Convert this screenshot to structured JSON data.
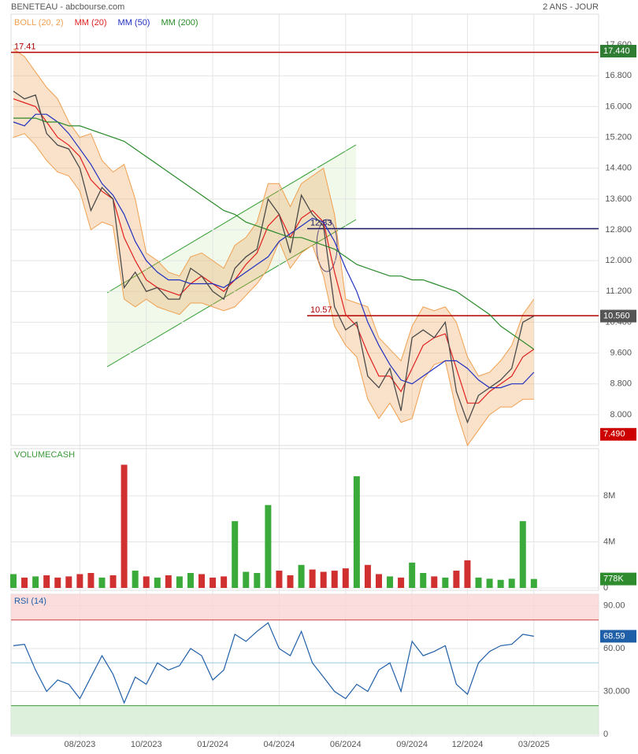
{
  "header": {
    "source": "BENETEAU - abcbourse.com",
    "period": "2 ANS - JOUR"
  },
  "chart_data": [
    {
      "type": "line",
      "categories": [
        null,
        null,
        null,
        null,
        null,
        null,
        "08/2023",
        null,
        null,
        null,
        null,
        null,
        "10/2023",
        null,
        null,
        null,
        null,
        null,
        "01/2024",
        null,
        null,
        null,
        null,
        null,
        "04/2024",
        null,
        null,
        null,
        null,
        null,
        "06/2024",
        null,
        null,
        null,
        null,
        null,
        "09/2024",
        null,
        null,
        null,
        null,
        "12/2024",
        null,
        null,
        null,
        null,
        null,
        "03/2025"
      ],
      "price": {
        "color": "#4a4a4a",
        "values": [
          16.4,
          16.2,
          16.3,
          15.3,
          15.0,
          14.9,
          14.4,
          13.3,
          13.9,
          13.6,
          11.3,
          11.7,
          11.2,
          11.3,
          11.0,
          11.0,
          11.8,
          11.6,
          11.2,
          11.0,
          11.8,
          12.1,
          12.3,
          13.6,
          13.2,
          12.2,
          13.7,
          13.2,
          12.9,
          10.8,
          10.2,
          10.4,
          9.0,
          8.7,
          9.2,
          8.1,
          10.0,
          10.2,
          10.0,
          10.4,
          8.6,
          7.8,
          8.5,
          8.7,
          8.9,
          9.2,
          10.4,
          10.56
        ]
      },
      "bands": {
        "name": "BOLL (20, 2)",
        "color": "#f0a050",
        "upper": [
          17.5,
          17.3,
          16.9,
          16.5,
          16.2,
          15.6,
          15.2,
          15.3,
          14.6,
          14.3,
          14.5,
          13.6,
          12.2,
          12.0,
          11.7,
          11.6,
          12.1,
          12.2,
          12.0,
          11.8,
          12.4,
          12.6,
          13.0,
          14.0,
          14.0,
          13.4,
          14.0,
          14.2,
          14.4,
          13.2,
          11.0,
          10.9,
          10.8,
          10.0,
          9.7,
          9.4,
          10.3,
          10.8,
          10.7,
          10.8,
          10.4,
          9.5,
          9.0,
          9.1,
          9.4,
          9.8,
          10.6,
          11.0
        ],
        "lower": [
          15.2,
          15.3,
          15.0,
          14.6,
          14.3,
          14.2,
          13.8,
          12.8,
          13.0,
          12.9,
          11.0,
          10.8,
          11.0,
          10.8,
          10.7,
          10.6,
          10.9,
          10.9,
          10.8,
          10.7,
          10.8,
          11.1,
          11.4,
          11.8,
          12.5,
          11.8,
          12.2,
          12.4,
          11.6,
          10.3,
          9.8,
          9.5,
          8.4,
          7.9,
          8.3,
          7.8,
          7.9,
          8.9,
          9.3,
          9.4,
          8.1,
          7.2,
          7.6,
          8.0,
          8.2,
          8.2,
          8.4,
          8.4
        ]
      },
      "series": [
        {
          "name": "MM (20)",
          "color": "#e02020",
          "values": [
            16.2,
            16.1,
            16.0,
            15.6,
            15.2,
            15.0,
            14.7,
            14.1,
            13.8,
            13.6,
            12.6,
            12.0,
            11.5,
            11.3,
            11.2,
            11.1,
            11.4,
            11.6,
            11.4,
            11.2,
            11.5,
            11.9,
            12.2,
            12.9,
            13.2,
            12.6,
            13.1,
            13.3,
            13.0,
            11.7,
            10.6,
            10.3,
            9.6,
            9.0,
            9.0,
            8.6,
            9.2,
            9.8,
            10.0,
            10.1,
            9.2,
            8.3,
            8.3,
            8.6,
            8.8,
            9.0,
            9.5,
            9.7
          ]
        },
        {
          "name": "MM (50)",
          "color": "#2030c0",
          "values": [
            15.6,
            15.5,
            15.8,
            15.8,
            15.6,
            15.3,
            14.9,
            14.5,
            14.0,
            13.7,
            13.2,
            12.5,
            12.0,
            11.7,
            11.5,
            11.5,
            11.4,
            11.4,
            11.4,
            11.3,
            11.5,
            11.7,
            11.9,
            12.1,
            12.5,
            12.7,
            12.9,
            13.1,
            13.0,
            12.5,
            11.8,
            11.2,
            10.4,
            9.8,
            9.3,
            8.9,
            8.8,
            9.0,
            9.2,
            9.4,
            9.4,
            9.2,
            8.9,
            8.7,
            8.7,
            8.8,
            8.8,
            9.1
          ]
        },
        {
          "name": "MM (200)",
          "color": "#2a8a2a",
          "values": [
            15.7,
            15.7,
            15.7,
            15.6,
            15.6,
            15.5,
            15.5,
            15.4,
            15.3,
            15.2,
            15.1,
            14.9,
            14.7,
            14.5,
            14.3,
            14.1,
            13.9,
            13.7,
            13.5,
            13.3,
            13.2,
            13.0,
            12.9,
            12.8,
            12.7,
            12.6,
            12.6,
            12.5,
            12.4,
            12.3,
            12.1,
            11.9,
            11.8,
            11.7,
            11.6,
            11.6,
            11.5,
            11.5,
            11.4,
            11.3,
            11.2,
            11.0,
            10.8,
            10.6,
            10.3,
            10.1,
            9.9,
            9.7
          ]
        }
      ],
      "levels": [
        {
          "value": 17.41,
          "color": "#b00000"
        },
        {
          "value": 12.83,
          "color": "#1a1a60"
        },
        {
          "value": 10.57,
          "color": "#b00000"
        }
      ],
      "tags": [
        {
          "value": 17.44,
          "label": "17.440",
          "color": "#2e7d32"
        },
        {
          "value": 10.56,
          "label": "10.560",
          "color": "#555555"
        },
        {
          "value": 7.49,
          "label": "7.490",
          "color": "#cc0000"
        }
      ],
      "ylim": [
        7.2,
        18.4
      ],
      "yticks": [
        {
          "value": 8,
          "label": "8.000"
        },
        {
          "value": 8.8,
          "label": "8.800"
        },
        {
          "value": 9.6,
          "label": "9.600"
        },
        {
          "value": 10.4,
          "label": "10.400"
        },
        {
          "value": 11.2,
          "label": "11.200"
        },
        {
          "value": 12,
          "label": "12.000"
        },
        {
          "value": 12.8,
          "label": "12.800"
        },
        {
          "value": 13.6,
          "label": "13.600"
        },
        {
          "value": 14.4,
          "label": "14.400"
        },
        {
          "value": 15.2,
          "label": "15.200"
        },
        {
          "value": 16,
          "label": "16.000"
        },
        {
          "value": 16.8,
          "label": "16.800"
        },
        {
          "value": 17.6,
          "label": "17.600"
        }
      ],
      "grid": true
    },
    {
      "type": "bar",
      "title": "VOLUMECASH",
      "up_color": "#3aaa3a",
      "down_color": "#d03030",
      "values": [
        1200000,
        900000,
        1000000,
        1100000,
        900000,
        1000000,
        1200000,
        1300000,
        900000,
        1100000,
        10700000,
        1500000,
        1000000,
        900000,
        1100000,
        1000000,
        1300000,
        1200000,
        900000,
        1000000,
        5800000,
        1400000,
        1300000,
        7200000,
        1500000,
        1100000,
        2000000,
        1600000,
        1400000,
        1500000,
        1700000,
        9700000,
        2000000,
        1200000,
        1000000,
        900000,
        2200000,
        1300000,
        1000000,
        900000,
        1500000,
        2400000,
        900000,
        800000,
        700000,
        800000,
        5800000,
        778000
      ],
      "tag": {
        "value": 778000,
        "label": "778K",
        "color": "#2e8b2e"
      },
      "ylim": [
        0,
        12100000
      ],
      "yticks": [
        0,
        {
          "value": 4000000,
          "label": "4M"
        },
        {
          "value": 8000000,
          "label": "8M"
        }
      ],
      "grid": true
    },
    {
      "type": "line",
      "title": "RSI (14)",
      "color": "#1f5fa8",
      "values": [
        62,
        63,
        45,
        30,
        38,
        35,
        25,
        40,
        55,
        42,
        22,
        40,
        35,
        50,
        45,
        48,
        60,
        55,
        38,
        45,
        70,
        65,
        72,
        78,
        60,
        55,
        72,
        50,
        40,
        30,
        25,
        35,
        30,
        45,
        50,
        30,
        65,
        55,
        58,
        62,
        35,
        28,
        50,
        58,
        62,
        63,
        70,
        68.59
      ],
      "overbought": 80,
      "oversold": 20,
      "midline": 50,
      "tag": {
        "value": 68.59,
        "color": "#1f5fa8"
      },
      "ylim": [
        0,
        98
      ],
      "yticks": [
        0,
        {
          "value": 30,
          "label": "30.000"
        },
        {
          "value": 60,
          "label": "60.00"
        },
        {
          "value": 90,
          "label": "90.00"
        }
      ],
      "grid": true
    }
  ]
}
